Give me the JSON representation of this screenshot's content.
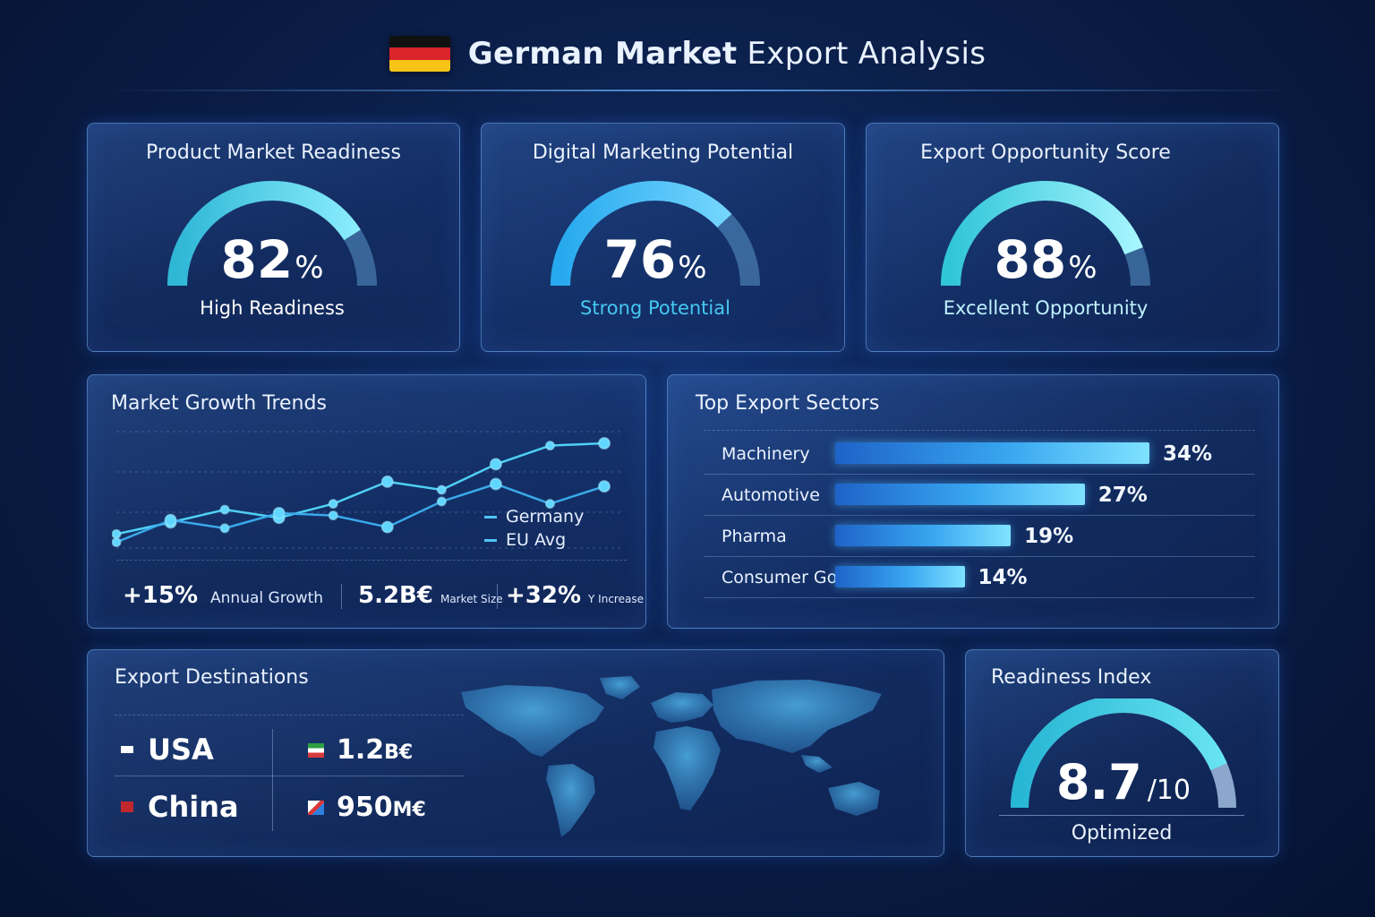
{
  "header": {
    "title_bold": "German Market",
    "title_rest": " Export Analysis",
    "flag_colors": [
      "#111111",
      "#d8242a",
      "#f6c417"
    ]
  },
  "kpis": [
    {
      "title": "Product Market Readiness",
      "value": "82",
      "unit": "%",
      "percent": 82,
      "label": "High Readiness",
      "label_color": "#ffffff"
    },
    {
      "title": "Digital Marketing Potential",
      "value": "76",
      "unit": "%",
      "percent": 76,
      "label": "Strong Potential",
      "label_color": "#45c8f0"
    },
    {
      "title": "Export Opportunity Score",
      "value": "88",
      "unit": "%",
      "percent": 88,
      "label": "Excellent Opportunity",
      "label_color": "#bff2ff"
    }
  ],
  "growth": {
    "title": "Market Growth Trends",
    "legend": [
      "Germany",
      "EU Avg"
    ],
    "stats": {
      "annual_value": "+15%",
      "annual_label": "Annual Growth",
      "size_value": "5.2B€",
      "size_label": "Market Size",
      "increase_value": "+32%",
      "increase_label": "Y Increase"
    }
  },
  "chart_data": {
    "type": "line",
    "title": "Market Growth Trends",
    "x": [
      1,
      2,
      3,
      4,
      5,
      6,
      7,
      8,
      9,
      10
    ],
    "series": [
      {
        "name": "Germany",
        "values": [
          12,
          22,
          33,
          26,
          38,
          57,
          50,
          72,
          88,
          90
        ]
      },
      {
        "name": "EU Avg",
        "values": [
          5,
          24,
          17,
          30,
          28,
          18,
          40,
          55,
          38,
          53
        ]
      }
    ],
    "ylim": [
      0,
      100
    ],
    "grid": true,
    "legend": "right"
  },
  "sectors": {
    "title": "Top Export Sectors",
    "items": [
      {
        "name": "Machinery",
        "value": "34%",
        "pct": 34
      },
      {
        "name": "Automotive",
        "value": "27%",
        "pct": 27
      },
      {
        "name": "Pharma",
        "value": "19%",
        "pct": 19
      },
      {
        "name": "Consumer Goods",
        "value": "14%",
        "pct": 14
      }
    ]
  },
  "destinations": {
    "title": "Export Destinations",
    "countries": [
      {
        "name": "USA",
        "marker_color": "#ffffff"
      },
      {
        "name": "China",
        "marker_color": "#c0282d"
      }
    ],
    "values": [
      {
        "amount": "1.2",
        "unit": "B€"
      },
      {
        "amount": "950",
        "unit": "M€"
      }
    ]
  },
  "readiness": {
    "title": "Readiness Index",
    "value": "8.7",
    "suffix": "/10",
    "score": 8.7,
    "max": 10,
    "label": "Optimized"
  }
}
